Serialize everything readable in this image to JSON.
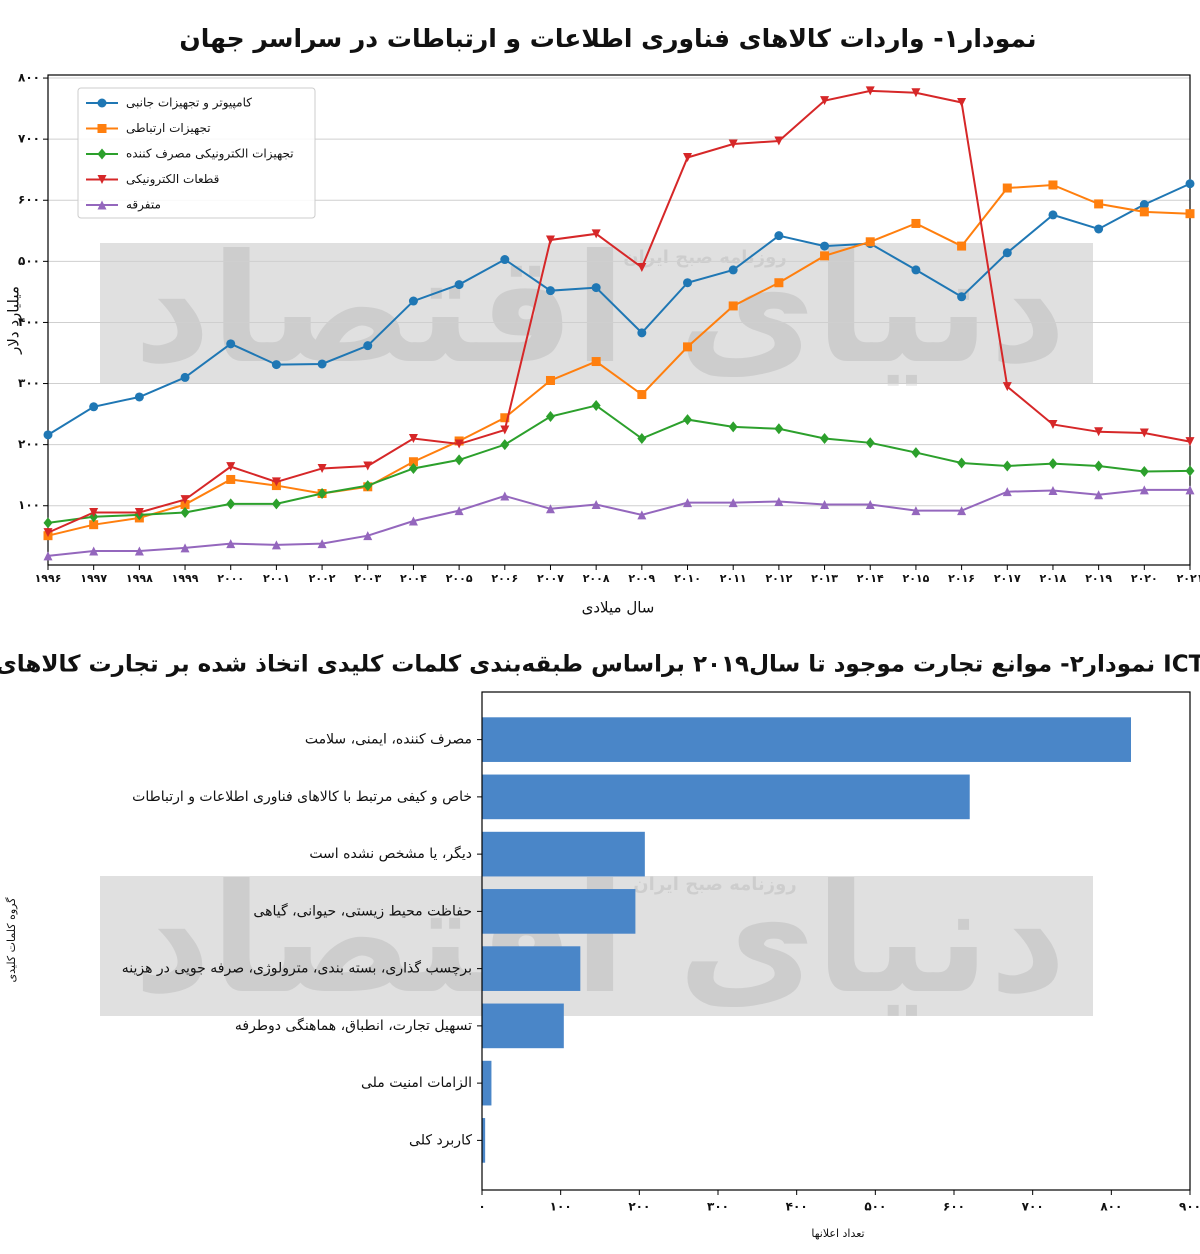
{
  "chart_data": [
    {
      "type": "line",
      "title": "نمودار۱- واردات کالاهای فناوری اطلاعات و ارتباطات در سراسر جهان",
      "ylabel": "میلیارد دلار",
      "xlabel": "سال میلادی",
      "categories": [
        "۱۹۹۶",
        "۱۹۹۷",
        "۱۹۹۸",
        "۱۹۹۹",
        "۲۰۰۰",
        "۲۰۰۱",
        "۲۰۰۲",
        "۲۰۰۳",
        "۲۰۰۴",
        "۲۰۰۵",
        "۲۰۰۶",
        "۲۰۰۷",
        "۲۰۰۸",
        "۲۰۰۹",
        "۲۰۱۰",
        "۲۰۱۱",
        "۲۰۱۲",
        "۲۰۱۳",
        "۲۰۱۴",
        "۲۰۱۵",
        "۲۰۱۶",
        "۲۰۱۷",
        "۲۰۱۸",
        "۲۰۱۹",
        "۲۰۲۰",
        "۲۰۲۱"
      ],
      "ylim": [
        3,
        805
      ],
      "yticks": [
        {
          "value": 100,
          "label": "۱۰۰"
        },
        {
          "value": 200,
          "label": "۲۰۰"
        },
        {
          "value": 300,
          "label": "۳۰۰"
        },
        {
          "value": 400,
          "label": "۴۰۰"
        },
        {
          "value": 500,
          "label": "۵۰۰"
        },
        {
          "value": 600,
          "label": "۶۰۰"
        },
        {
          "value": 700,
          "label": "۷۰۰"
        },
        {
          "value": 800,
          "label": "۸۰۰"
        }
      ],
      "grid": true,
      "legend": "upper left",
      "series": [
        {
          "name": "کامپیوتر و تجهیزات جانبی",
          "color": "#1f77b4",
          "marker": "circle",
          "values": [
            216,
            262,
            278,
            310,
            365,
            331,
            332,
            362,
            435,
            462,
            503,
            452,
            457,
            383,
            465,
            486,
            542,
            525,
            529,
            486,
            442,
            514,
            576,
            553,
            593,
            627
          ]
        },
        {
          "name": "تجهیزات ارتباطی",
          "color": "#ff7f0e",
          "marker": "square",
          "values": [
            51,
            69,
            80,
            102,
            143,
            133,
            120,
            131,
            172,
            206,
            244,
            305,
            336,
            282,
            360,
            427,
            465,
            509,
            532,
            562,
            525,
            620,
            625,
            594,
            581,
            578
          ]
        },
        {
          "name": "تجهیزات الکترونیکی مصرف کننده",
          "color": "#2ca02c",
          "marker": "diamond",
          "values": [
            72,
            82,
            85,
            89,
            103,
            103,
            120,
            133,
            161,
            175,
            200,
            246,
            264,
            210,
            241,
            229,
            226,
            210,
            203,
            187,
            170,
            165,
            169,
            165,
            156,
            157
          ]
        },
        {
          "name": "قطعات الکترونیکی",
          "color": "#d62728",
          "marker": "triangle-down",
          "values": [
            56,
            89,
            89,
            110,
            164,
            139,
            161,
            165,
            210,
            201,
            224,
            535,
            545,
            490,
            670,
            692,
            697,
            763,
            779,
            776,
            760,
            295,
            233,
            221,
            219,
            205
          ]
        },
        {
          "name": "متفرقه",
          "color": "#9467bd",
          "marker": "triangle-up",
          "values": [
            18,
            26,
            26,
            31,
            38,
            36,
            38,
            51,
            75,
            92,
            116,
            95,
            102,
            85,
            105,
            105,
            107,
            102,
            102,
            92,
            92,
            123,
            125,
            118,
            126,
            126
          ]
        }
      ]
    },
    {
      "type": "barh",
      "title": "نمودار۲- موانع تجارت موجود تا سال۲۰۱۹ براساس طبقه‌بندی کلمات کلیدی اتخاذ شده بر تجارت کالاهای ICT",
      "xlabel": "تعداد اعلانها",
      "ylabel": "گروه کلمات کلیدی",
      "color": "#4a86c8",
      "categories": [
        "مصرف کننده، ایمنی، سلامت",
        "خاص و کیفی مرتبط با کالاهای فناوری اطلاعات و ارتباطات",
        "دیگر، یا مشخص نشده است",
        "حفاظت محیط زیستی، حیوانی، گیاهی",
        "برچسب گذاری، بسته بندی، مترولوژی، صرفه جویی در هزینه",
        "تسهیل تجارت، انطباق، هماهنگی دوطرفه",
        "الزامات امنیت ملی",
        "کاربرد کلی"
      ],
      "values": [
        825,
        620,
        207,
        195,
        125,
        104,
        12,
        4
      ],
      "xlim": [
        0,
        900
      ],
      "xticks": [
        {
          "value": 0,
          "label": "۰"
        },
        {
          "value": 100,
          "label": "۱۰۰"
        },
        {
          "value": 200,
          "label": "۲۰۰"
        },
        {
          "value": 300,
          "label": "۳۰۰"
        },
        {
          "value": 400,
          "label": "۴۰۰"
        },
        {
          "value": 500,
          "label": "۵۰۰"
        },
        {
          "value": 600,
          "label": "۶۰۰"
        },
        {
          "value": 700,
          "label": "۷۰۰"
        },
        {
          "value": 800,
          "label": "۸۰۰"
        },
        {
          "value": 900,
          "label": "۹۰۰"
        }
      ]
    }
  ],
  "watermark": {
    "logo": "دنیای اقتصاد",
    "caption": "روزنامه صبح ایران"
  }
}
